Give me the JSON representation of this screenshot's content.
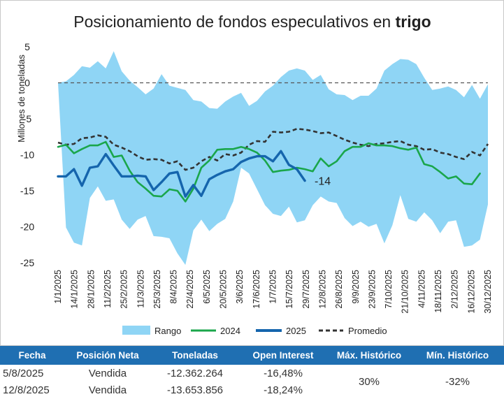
{
  "chart_data": {
    "type": "line",
    "title_main": "Posicionamiento de fondos especulativos en ",
    "title_bold": "trigo",
    "ylabel": "Millones de toneladas",
    "xlabel": "",
    "ylim": [
      -25,
      5
    ],
    "yticks": [
      5,
      0,
      -5,
      -10,
      -15,
      -20,
      -25
    ],
    "xticks": [
      "1/1/2025",
      "14/1/2025",
      "28/1/2025",
      "11/2/2025",
      "25/2/2025",
      "11/3/2025",
      "25/3/2025",
      "8/4/2025",
      "22/4/2025",
      "6/5/2025",
      "20/5/2025",
      "3/6/2025",
      "17/6/2025",
      "1/7/2025",
      "15/7/2025",
      "29/7/2025",
      "12/8/2025",
      "26/8/2025",
      "9/9/2025",
      "23/9/2025",
      "7/10/2025",
      "21/10/2025",
      "4/11/2025",
      "18/11/2025",
      "2/12/2025",
      "16/12/2025",
      "30/12/2025"
    ],
    "zero_line": 0,
    "range_upper": [
      0,
      0.2,
      1.1,
      2.3,
      2.1,
      3.0,
      2.0,
      4.4,
      1.6,
      0.3,
      -0.6,
      -1.6,
      -0.8,
      1.2,
      -0.4,
      -0.7,
      -1.0,
      -2.4,
      -2.6,
      -3.5,
      -3.6,
      -2.6,
      -1.9,
      -1.4,
      -3.2,
      -2.5,
      -1.2,
      -0.4,
      0.8,
      1.7,
      2.0,
      1.7,
      0.4,
      1.1,
      -0.9,
      -1.6,
      -1.7,
      -2.4,
      -1.8,
      -1.8,
      -0.8,
      1.7,
      2.6,
      3.3,
      3.2,
      2.6,
      0.7,
      -1.0,
      -0.8,
      -0.5,
      -1.0,
      -2.0,
      -0.3,
      -2.2,
      -0.2
    ],
    "range_lower": [
      0,
      -20.1,
      -22.2,
      -22.6,
      -16.0,
      -14.4,
      -16.4,
      -16.2,
      -19.0,
      -20.3,
      -19.0,
      -18.5,
      -21.3,
      -21.4,
      -21.6,
      -23.7,
      -25.3,
      -20.5,
      -19.0,
      -20.6,
      -19.6,
      -18.9,
      -16.5,
      -11.8,
      -12.6,
      -14.8,
      -17.0,
      -18.2,
      -18.5,
      -17.2,
      -19.4,
      -19.1,
      -17.0,
      -15.8,
      -16.5,
      -16.7,
      -18.8,
      -19.9,
      -19.3,
      -20.0,
      -19.6,
      -22.3,
      -19.8,
      -15.6,
      -18.9,
      -19.3,
      -18.0,
      -19.1,
      -20.9,
      -19.3,
      -19.1,
      -22.8,
      -22.6,
      -21.8,
      -16.9
    ],
    "series": [
      {
        "name": "Rango",
        "color": "#8fd5f5"
      },
      {
        "name": "2024",
        "color": "#1aa64b",
        "values": [
          -8.9,
          -8.6,
          -9.8,
          -9.2,
          -8.7,
          -8.7,
          -8.2,
          -10.3,
          -10.1,
          -12.2,
          -13.8,
          -14.7,
          -15.7,
          -15.8,
          -14.8,
          -15.0,
          -16.5,
          -14.7,
          -11.8,
          -10.8,
          -9.3,
          -9.2,
          -9.2,
          -8.9,
          -9.2,
          -9.7,
          -10.8,
          -12.4,
          -12.2,
          -12.1,
          -11.8,
          -12.0,
          -12.3,
          -10.5,
          -11.6,
          -10.9,
          -9.5,
          -8.9,
          -8.9,
          -8.4,
          -8.7,
          -8.7,
          -8.8,
          -9.1,
          -9.3,
          -9.0,
          -11.3,
          -11.6,
          -12.4,
          -13.3,
          -13.0,
          -14.0,
          -14.1,
          -12.6
        ]
      },
      {
        "name": "2025",
        "color": "#1565ad",
        "values": [
          -13.0,
          -13.0,
          -12.0,
          -14.3,
          -11.8,
          -11.6,
          -9.9,
          -11.5,
          -13.0,
          -13.0,
          -12.9,
          -13.0,
          -14.9,
          -13.8,
          -12.6,
          -12.4,
          -15.8,
          -14.2,
          -15.7,
          -13.4,
          -12.8,
          -12.3,
          -12.0,
          -11.0,
          -10.5,
          -10.2,
          -10.2,
          -10.9,
          -9.5,
          -11.4,
          -12.0,
          -13.6
        ]
      },
      {
        "name": "Promedio",
        "color": "#333333",
        "values": [
          -8.3,
          -8.6,
          -8.5,
          -7.7,
          -7.6,
          -7.3,
          -7.5,
          -8.6,
          -9.0,
          -9.5,
          -10.2,
          -10.7,
          -10.6,
          -10.7,
          -11.2,
          -10.9,
          -12.1,
          -11.8,
          -10.9,
          -10.3,
          -10.8,
          -9.9,
          -10.1,
          -9.7,
          -8.6,
          -8.1,
          -8.2,
          -6.8,
          -6.9,
          -6.8,
          -6.4,
          -6.5,
          -6.7,
          -7.0,
          -6.9,
          -7.4,
          -7.9,
          -8.3,
          -8.6,
          -8.8,
          -8.5,
          -8.4,
          -8.2,
          -8.1,
          -8.6,
          -8.8,
          -9.3,
          -9.2,
          -9.7,
          -9.9,
          -10.3,
          -10.6,
          -9.6,
          -10.1,
          -8.5
        ]
      }
    ],
    "end_label": "-14",
    "legend": [
      "Rango",
      "2024",
      "2025",
      "Promedio"
    ],
    "legend_position": "bottom",
    "grid": false
  },
  "table": {
    "headers": [
      "Fecha",
      "Posición Neta",
      "Toneladas",
      "Open Interest",
      "Máx. Histórico",
      "Mín. Histórico"
    ],
    "rows": [
      [
        "5/8/2025",
        "Vendida",
        "-12.362.264",
        "-16,48%"
      ],
      [
        "12/8/2025",
        "Vendida",
        "-13.653.856",
        "-18,24%"
      ]
    ],
    "max_hist": "30%",
    "min_hist": "-32%"
  }
}
